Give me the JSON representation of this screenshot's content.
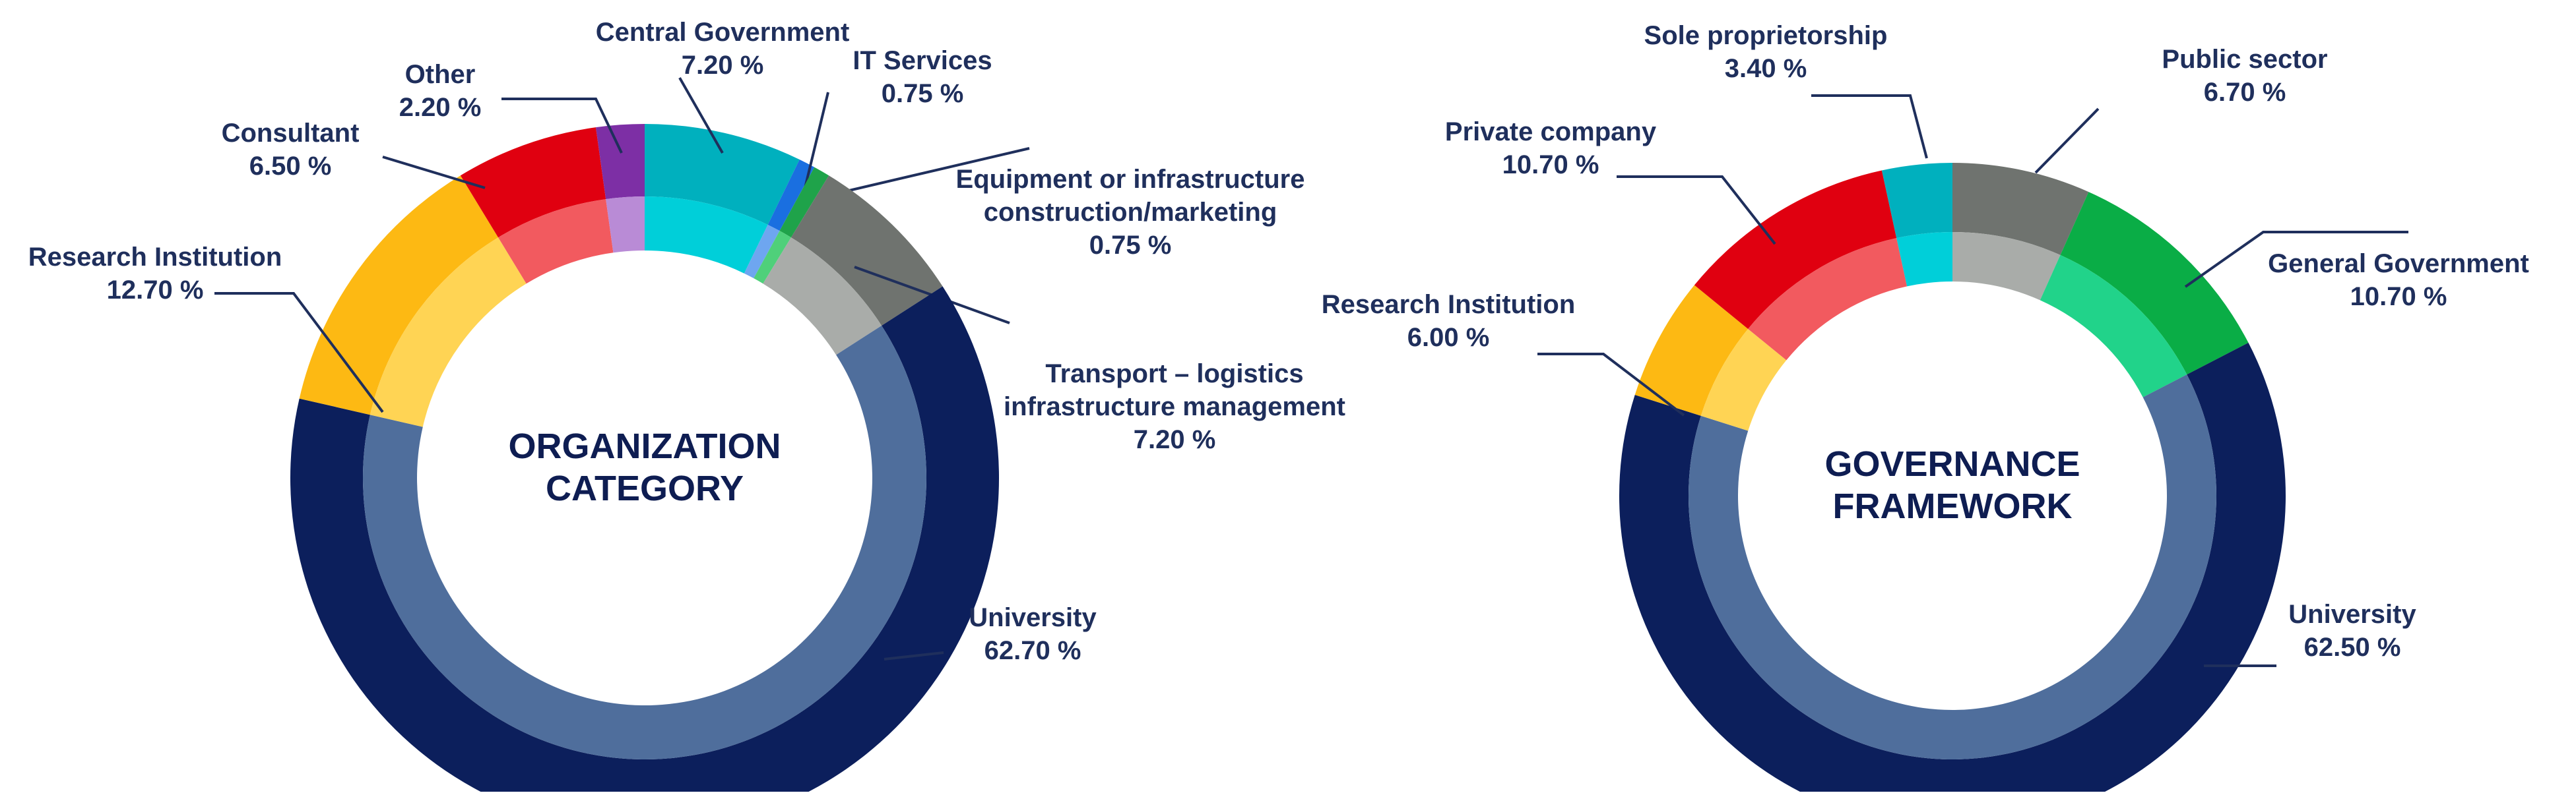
{
  "chart_data": [
    {
      "type": "pie",
      "variant": "donut",
      "title": "ORGANIZATION CATEGORY",
      "center_lines": [
        "ORGANIZATION",
        "CATEGORY"
      ],
      "unit": "%",
      "slices": [
        {
          "name": "Central Government",
          "value": 7.2,
          "display": "7.20 %",
          "color": "#00b0be",
          "inner_color": "#00cfd9",
          "label_lines": [
            "Central Government"
          ]
        },
        {
          "name": "IT Services",
          "value": 0.75,
          "display": "0.75 %",
          "color": "#1a6fe0",
          "inner_color": "#6ea6f0",
          "label_lines": [
            "IT Services"
          ]
        },
        {
          "name": "Equipment or infrastructure construction/marketing",
          "value": 0.75,
          "display": "0.75 %",
          "color": "#1fa34a",
          "inner_color": "#4fd07a",
          "label_lines": [
            "Equipment or infrastructure",
            "construction/marketing"
          ]
        },
        {
          "name": "Transport – logistics infrastructure management",
          "value": 7.2,
          "display": "7.20 %",
          "color": "#6f736f",
          "inner_color": "#a9aca9",
          "label_lines": [
            "Transport – logistics",
            "infrastructure management"
          ]
        },
        {
          "name": "University",
          "value": 62.7,
          "display": "62.70 %",
          "color": "#0c1f5c",
          "inner_color": "#4f6e9c",
          "label_lines": [
            "University"
          ]
        },
        {
          "name": "Research Institution",
          "value": 12.7,
          "display": "12.70 %",
          "color": "#fdb913",
          "inner_color": "#ffd454",
          "label_lines": [
            "Research Institution"
          ]
        },
        {
          "name": "Consultant",
          "value": 6.5,
          "display": "6.50 %",
          "color": "#e00010",
          "inner_color": "#f25a5f",
          "label_lines": [
            "Consultant"
          ]
        },
        {
          "name": "Other",
          "value": 2.2,
          "display": "2.20 %",
          "color": "#7d2fa5",
          "inner_color": "#b98bd6",
          "label_lines": [
            "Other"
          ]
        }
      ]
    },
    {
      "type": "pie",
      "variant": "donut",
      "title": "GOVERNANCE FRAMEWORK",
      "center_lines": [
        "GOVERNANCE",
        "FRAMEWORK"
      ],
      "unit": "%",
      "slices": [
        {
          "name": "Public sector",
          "value": 6.7,
          "display": "6.70 %",
          "color": "#6f736f",
          "inner_color": "#a9aca9",
          "label_lines": [
            "Public sector"
          ]
        },
        {
          "name": "General Government",
          "value": 10.7,
          "display": "10.70 %",
          "color": "#0aad46",
          "inner_color": "#21d38a",
          "label_lines": [
            "General Government"
          ]
        },
        {
          "name": "University",
          "value": 62.5,
          "display": "62.50 %",
          "color": "#0c1f5c",
          "inner_color": "#4f6e9c",
          "label_lines": [
            "University"
          ]
        },
        {
          "name": "Research Institution",
          "value": 6.0,
          "display": "6.00 %",
          "color": "#fdb913",
          "inner_color": "#ffd454",
          "label_lines": [
            "Research Institution"
          ]
        },
        {
          "name": "Private company",
          "value": 10.7,
          "display": "10.70 %",
          "color": "#e00010",
          "inner_color": "#f25a5f",
          "label_lines": [
            "Private company"
          ]
        },
        {
          "name": "Sole proprietorship",
          "value": 3.4,
          "display": "3.40 %",
          "color": "#00b0be",
          "inner_color": "#00cfd9",
          "label_lines": [
            "Sole proprietorship"
          ]
        }
      ]
    }
  ]
}
